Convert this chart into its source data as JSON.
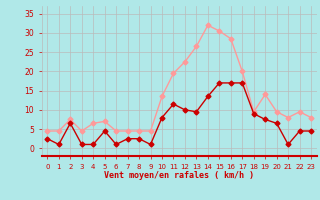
{
  "x": [
    0,
    1,
    2,
    3,
    4,
    5,
    6,
    7,
    8,
    9,
    10,
    11,
    12,
    13,
    14,
    15,
    16,
    17,
    18,
    19,
    20,
    21,
    22,
    23
  ],
  "wind_avg": [
    2.5,
    1.0,
    6.5,
    1.0,
    1.0,
    4.5,
    1.0,
    2.5,
    2.5,
    1.0,
    8.0,
    11.5,
    10.0,
    9.5,
    13.5,
    17.0,
    17.0,
    17.0,
    9.0,
    7.5,
    6.5,
    1.0,
    4.5,
    4.5
  ],
  "wind_gust": [
    4.5,
    4.5,
    7.5,
    4.5,
    6.5,
    7.0,
    4.5,
    4.5,
    4.5,
    4.5,
    13.5,
    19.5,
    22.5,
    26.5,
    32.0,
    30.5,
    28.5,
    20.0,
    9.5,
    14.0,
    9.5,
    8.0,
    9.5,
    8.0
  ],
  "color_avg": "#cc0000",
  "color_gust": "#ff9999",
  "bg_color": "#b0e8e8",
  "grid_color": "#bbbbbb",
  "tick_color": "#cc0000",
  "xlabel": "Vent moyen/en rafales ( km/h )",
  "ylim": [
    -2,
    37
  ],
  "yticks": [
    0,
    5,
    10,
    15,
    20,
    25,
    30,
    35
  ],
  "xlim": [
    -0.5,
    23.5
  ],
  "line_width": 1.0,
  "marker_size": 2.5
}
